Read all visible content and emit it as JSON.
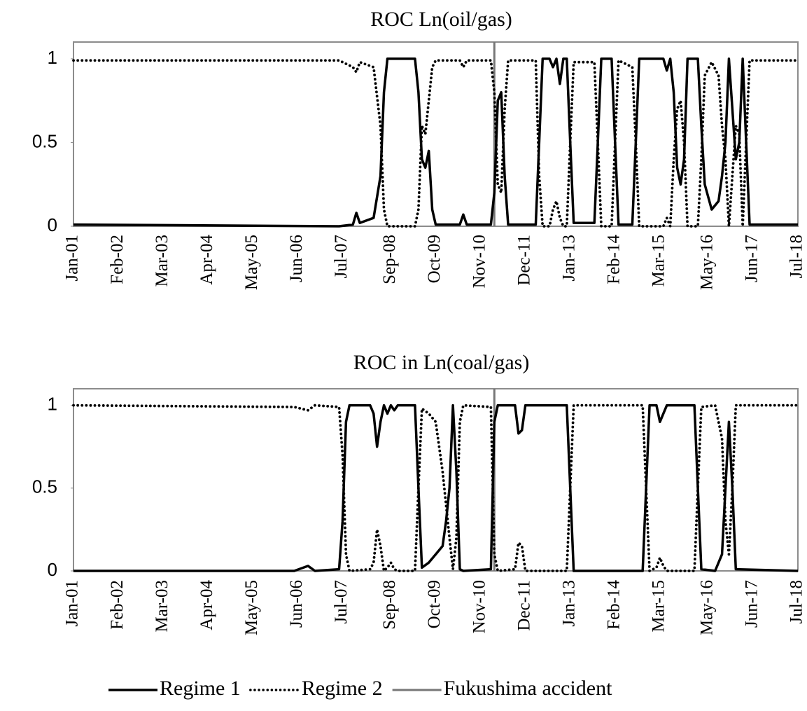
{
  "chart_data": [
    {
      "type": "line",
      "title": "ROC Ln(oil/gas)",
      "x": [
        "Jan-01",
        "Jun-07",
        "Oct-07",
        "Nov-07",
        "Dec-07",
        "Apr-08",
        "Jun-08",
        "Jul-08",
        "Aug-08",
        "Apr-09",
        "May-09",
        "Jun-09",
        "Jul-09",
        "Aug-09",
        "Sep-09",
        "Oct-09",
        "May-10",
        "Jun-10",
        "Jul-10",
        "Feb-11",
        "Mar-11",
        "Apr-11",
        "May-11",
        "Jun-11",
        "Jul-11",
        "Mar-12",
        "Apr-12",
        "May-12",
        "Jul-12",
        "Aug-12",
        "Sep-12",
        "Oct-12",
        "Nov-12",
        "Dec-12",
        "Jan-13",
        "Feb-13",
        "Aug-13",
        "Sep-13",
        "Oct-13",
        "Jan-14",
        "Feb-14",
        "Mar-14",
        "Jul-14",
        "Aug-14",
        "Sep-14",
        "Apr-15",
        "May-15",
        "Jun-15",
        "Jul-15",
        "Aug-15",
        "Sep-15",
        "Oct-15",
        "Nov-15",
        "Feb-16",
        "Mar-16",
        "Apr-16",
        "Jun-16",
        "Aug-16",
        "Sep-16",
        "Oct-16",
        "Nov-16",
        "Dec-16",
        "Jan-17",
        "Feb-17",
        "Mar-17",
        "Apr-17",
        "May-17",
        "Jul-18"
      ],
      "series": [
        {
          "name": "Regime 1",
          "color": "#000000",
          "style": "solid",
          "values": [
            0.01,
            0,
            0.01,
            0.08,
            0.02,
            0.05,
            0.3,
            0.8,
            1,
            1,
            0.8,
            0.4,
            0.35,
            0.45,
            0.1,
            0.01,
            0.01,
            0.07,
            0.01,
            0.01,
            0.2,
            0.75,
            0.8,
            0.3,
            0.01,
            0.01,
            0.5,
            1,
            1,
            0.95,
            1,
            0.85,
            1,
            1,
            0.5,
            0.02,
            0.02,
            0.5,
            1,
            1,
            0.5,
            0.01,
            0.01,
            0.5,
            1,
            1,
            0.93,
            1,
            0.8,
            0.35,
            0.25,
            0.4,
            1,
            1,
            0.6,
            0.25,
            0.1,
            0.15,
            0.3,
            0.5,
            1,
            0.7,
            0.4,
            0.5,
            1,
            0.5,
            0.01,
            0.01
          ]
        },
        {
          "name": "Regime 2",
          "color": "#000000",
          "style": "dotted",
          "values": [
            0.99,
            0.99,
            0.95,
            0.92,
            0.98,
            0.95,
            0.6,
            0.1,
            0,
            0,
            0.1,
            0.6,
            0.55,
            0.75,
            0.95,
            0.99,
            0.99,
            0.95,
            0.99,
            0.99,
            0.8,
            0.25,
            0.2,
            0.7,
            0.99,
            0.99,
            0.3,
            0,
            0,
            0.1,
            0.15,
            0.05,
            0,
            0,
            0.5,
            0.98,
            0.98,
            0.5,
            0,
            0,
            0.5,
            0.99,
            0.95,
            0.5,
            0,
            0,
            0.05,
            0,
            0.4,
            0.7,
            0.75,
            0.5,
            0,
            0,
            0.4,
            0.9,
            0.98,
            0.9,
            0.6,
            0.4,
            0,
            0.3,
            0.6,
            0.55,
            0,
            0.5,
            0.99,
            0.99
          ]
        }
      ],
      "events": [
        {
          "name": "Fukushima accident",
          "x": "Mar-11",
          "color": "#777777"
        }
      ],
      "xlim": [
        "Jan-01",
        "Jul-18"
      ],
      "xticks": [
        "Jan-01",
        "Feb-02",
        "Mar-03",
        "Apr-04",
        "May-05",
        "Jun-06",
        "Jul-07",
        "Sep-08",
        "Oct-09",
        "Nov-10",
        "Dec-11",
        "Jan-13",
        "Feb-14",
        "Mar-15",
        "May-16",
        "Jun-17",
        "Jul-18"
      ],
      "ylim": [
        0,
        1.1
      ],
      "yticks": [
        0,
        0.5,
        1
      ]
    },
    {
      "type": "line",
      "title": "ROC in Ln(coal/gas)",
      "x": [
        "Jan-01",
        "May-06",
        "Sep-06",
        "Nov-06",
        "Jun-07",
        "Jul-07",
        "Aug-07",
        "Sep-07",
        "Mar-08",
        "Apr-08",
        "May-08",
        "Jun-08",
        "Jul-08",
        "Aug-08",
        "Sep-08",
        "Oct-08",
        "Nov-08",
        "Apr-09",
        "May-09",
        "Jun-09",
        "Aug-09",
        "Oct-09",
        "Dec-09",
        "Jan-10",
        "Feb-10",
        "Mar-10",
        "Apr-10",
        "May-10",
        "Jun-10",
        "Feb-11",
        "Mar-11",
        "Apr-11",
        "Sep-11",
        "Oct-11",
        "Nov-11",
        "Dec-11",
        "Dec-12",
        "Jan-13",
        "Feb-13",
        "Oct-14",
        "Nov-14",
        "Dec-14",
        "Feb-15",
        "Mar-15",
        "Apr-15",
        "May-15",
        "Jan-16",
        "Feb-16",
        "Mar-16",
        "Jul-16",
        "Sep-16",
        "Oct-16",
        "Nov-16",
        "Dec-16",
        "Jan-17",
        "Jul-18"
      ],
      "series": [
        {
          "name": "Regime 1",
          "color": "#000000",
          "style": "solid",
          "values": [
            0,
            0,
            0.03,
            0,
            0.01,
            0.3,
            0.9,
            1,
            1,
            0.95,
            0.75,
            0.9,
            1,
            0.95,
            1,
            0.97,
            1,
            1,
            0.5,
            0.02,
            0.05,
            0.1,
            0.15,
            0.3,
            0.5,
            1,
            0.6,
            0.01,
            0,
            0.01,
            0.9,
            1,
            1,
            0.83,
            0.85,
            1,
            1,
            0.5,
            0,
            0,
            0.5,
            1,
            1,
            0.9,
            0.95,
            1,
            1,
            0.5,
            0.01,
            0,
            0.1,
            0.5,
            0.9,
            0.5,
            0.01,
            0
          ]
        },
        {
          "name": "Regime 2",
          "color": "#000000",
          "style": "dotted",
          "values": [
            1,
            0.99,
            0.97,
            1,
            0.99,
            0.7,
            0.1,
            0,
            0.01,
            0.05,
            0.25,
            0.15,
            0,
            0.02,
            0.05,
            0.01,
            0,
            0,
            0.5,
            0.98,
            0.95,
            0.9,
            0.6,
            0.4,
            0.2,
            0.01,
            0.2,
            0.9,
            1,
            0.99,
            0.1,
            0,
            0.01,
            0.17,
            0.15,
            0,
            0,
            0.5,
            1,
            1,
            0.5,
            0,
            0.02,
            0.08,
            0.03,
            0,
            0,
            0.5,
            0.99,
            1,
            0.8,
            0.3,
            0.1,
            0.5,
            1,
            1
          ]
        }
      ],
      "events": [
        {
          "name": "Fukushima accident",
          "x": "Mar-11",
          "color": "#777777"
        }
      ],
      "xlim": [
        "Jan-01",
        "Jul-18"
      ],
      "xticks": [
        "Jan-01",
        "Feb-02",
        "Mar-03",
        "Apr-04",
        "May-05",
        "Jun-06",
        "Jul-07",
        "Sep-08",
        "Oct-09",
        "Nov-10",
        "Dec-11",
        "Jan-13",
        "Feb-14",
        "Mar-15",
        "May-16",
        "Jun-17",
        "Jul-18"
      ],
      "ylim": [
        0,
        1.1
      ],
      "yticks": [
        0,
        0.5,
        1
      ],
      "legend": "bottom"
    }
  ]
}
